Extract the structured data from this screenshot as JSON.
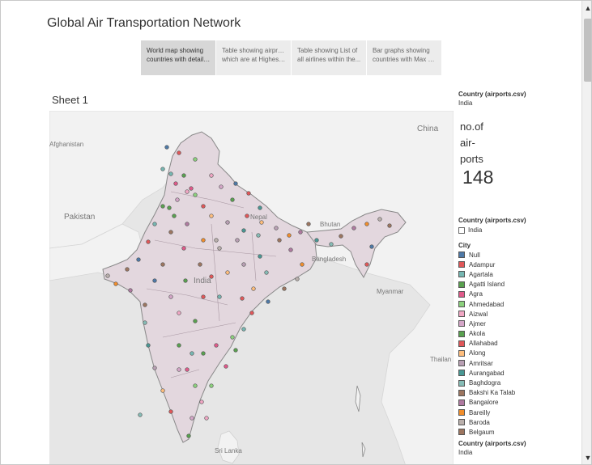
{
  "dashboard": {
    "title": "Global Air Transportation Network"
  },
  "tabs": [
    {
      "line1": "World map showing",
      "line2": "countries with details..."
    },
    {
      "line1": "Table showing airprots",
      "line2": "which are at Highest ..."
    },
    {
      "line1": "Table showing List of",
      "line2": "all airlines within the..."
    },
    {
      "line1": "Bar graphs showing",
      "line2": "countries with Max N..."
    }
  ],
  "sheet": {
    "title": "Sheet 1"
  },
  "map": {
    "labels": {
      "china": "China",
      "afghanistan": "Afghanistan",
      "pakistan": "Pakistan",
      "nepal": "Nepal",
      "bhutan": "Bhutan",
      "bangladesh": "Bangladesh",
      "india": "India",
      "myanmar": "Myanmar",
      "thailand": "Thailan",
      "srilanka": "Sri Lanka"
    },
    "colors": {
      "water": "#e6e6e6",
      "land": "#f2f2f2",
      "india_fill": "#e3d7de",
      "india_border": "#888888"
    }
  },
  "filter_top": {
    "header": "Country (airports.csv)",
    "value": "India"
  },
  "kpi": {
    "label": "no.of air- ports",
    "value": "148"
  },
  "filter_mid": {
    "header": "Country (airports.csv)",
    "option": "India"
  },
  "city_legend": {
    "header": "City",
    "items": [
      {
        "name": "Null",
        "color": "#4e79a7"
      },
      {
        "name": "Adampur",
        "color": "#e15759"
      },
      {
        "name": "Agartala",
        "color": "#76b7b2"
      },
      {
        "name": "Agatti Island",
        "color": "#59a14f"
      },
      {
        "name": "Agra",
        "color": "#e05a8a"
      },
      {
        "name": "Ahmedabad",
        "color": "#8cd17d"
      },
      {
        "name": "Aizwal",
        "color": "#f1a7c4"
      },
      {
        "name": "Ajmer",
        "color": "#d4a6c8"
      },
      {
        "name": "Akola",
        "color": "#59a14f"
      },
      {
        "name": "Allahabad",
        "color": "#e15759"
      },
      {
        "name": "Along",
        "color": "#ffbe7d"
      },
      {
        "name": "Amritsar",
        "color": "#b9a0b4"
      },
      {
        "name": "Aurangabad",
        "color": "#499894"
      },
      {
        "name": "Baghdogra",
        "color": "#86bcb6"
      },
      {
        "name": "Bakshi Ka Talab",
        "color": "#9d7660"
      },
      {
        "name": "Bangalore",
        "color": "#b07aa1"
      },
      {
        "name": "Bareilly",
        "color": "#f28e2b"
      },
      {
        "name": "Baroda",
        "color": "#bab0ac"
      },
      {
        "name": "Belgaum",
        "color": "#9d7660"
      }
    ]
  },
  "filter_bottom": {
    "header": "Country (airports.csv)",
    "value": "India"
  },
  "scrollbar": {
    "up_icon": "▲",
    "down_icon": "▼"
  }
}
